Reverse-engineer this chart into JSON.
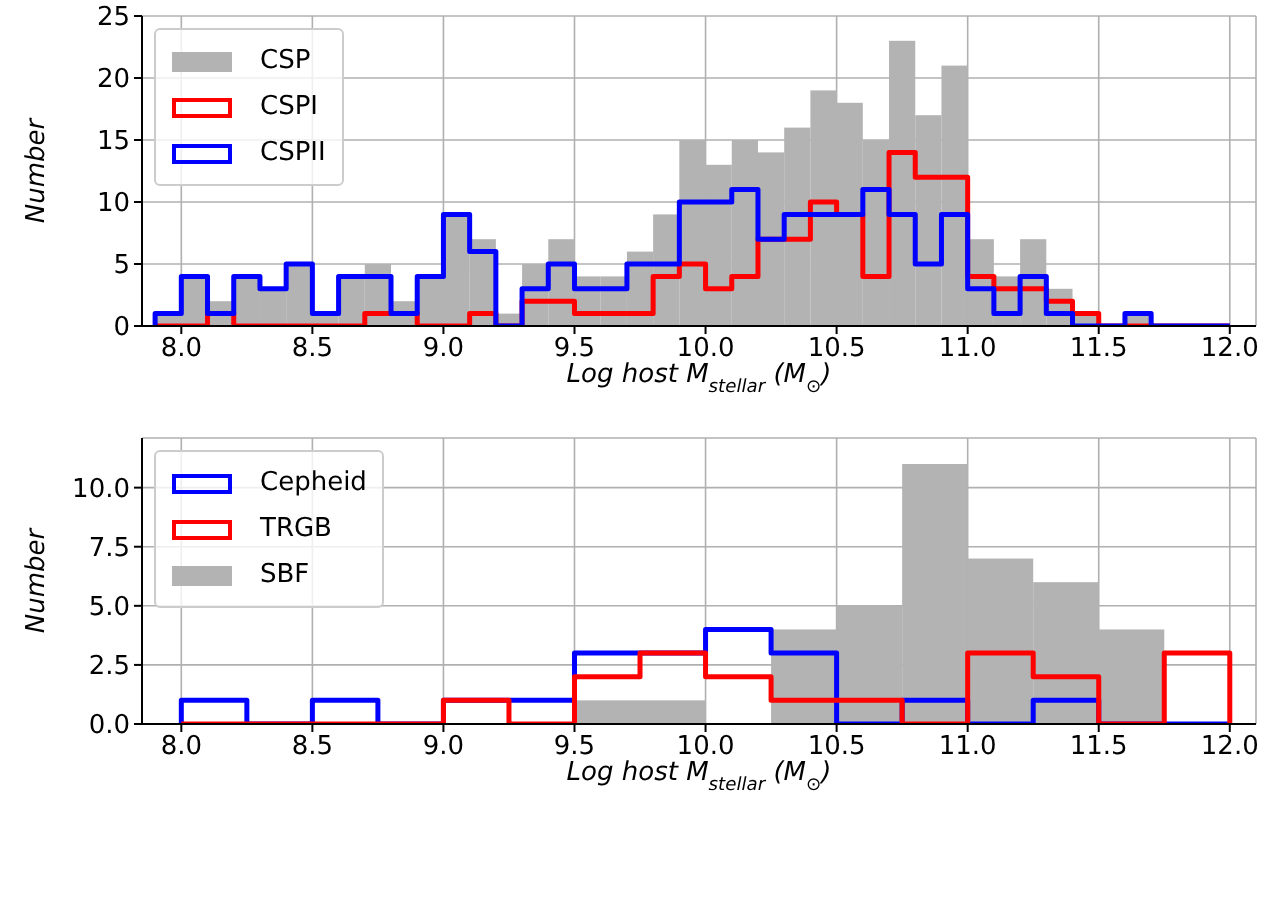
{
  "chart_data": [
    {
      "type": "histogram",
      "xlabel": "Log host M$_{stellar}$ (M$_{⊙}$)",
      "ylabel": "Number",
      "bins": [
        7.9,
        8.0,
        8.1,
        8.2,
        8.3,
        8.4,
        8.5,
        8.6,
        8.7,
        8.8,
        8.9,
        9.0,
        9.1,
        9.2,
        9.3,
        9.4,
        9.5,
        9.6,
        9.7,
        9.8,
        9.9,
        10.0,
        10.1,
        10.2,
        10.3,
        10.4,
        10.5,
        10.6,
        10.7,
        10.8,
        10.9,
        11.0,
        11.1,
        11.2,
        11.3,
        11.4,
        11.5,
        11.6,
        11.7,
        11.8,
        11.9,
        12.0
      ],
      "series": [
        {
          "name": "CSP",
          "color": "#b3b3b3",
          "values": [
            1,
            4,
            2,
            4,
            3,
            5,
            1,
            4,
            5,
            2,
            4,
            9,
            7,
            1,
            5,
            7,
            4,
            4,
            6,
            9,
            15,
            13,
            15,
            14,
            16,
            19,
            18,
            15,
            23,
            17,
            21,
            7,
            4,
            7,
            3,
            1,
            0,
            1,
            0,
            0,
            0
          ]
        },
        {
          "name": "CSPI",
          "color": "#ff0000",
          "line_style": "solid",
          "values": [
            0,
            0,
            1,
            0,
            0,
            0,
            0,
            0,
            1,
            1,
            0,
            0,
            1,
            0,
            2,
            2,
            1,
            1,
            1,
            4,
            5,
            3,
            4,
            7,
            7,
            10,
            9,
            4,
            14,
            12,
            12,
            4,
            3,
            3,
            2,
            1,
            0,
            0,
            0,
            0,
            0
          ]
        },
        {
          "name": "CSPII",
          "color": "#0000ff",
          "line_style": "solid",
          "values": [
            1,
            4,
            1,
            4,
            3,
            5,
            1,
            4,
            4,
            1,
            4,
            9,
            6,
            0,
            3,
            5,
            3,
            3,
            5,
            5,
            10,
            10,
            11,
            7,
            9,
            9,
            9,
            11,
            9,
            5,
            9,
            3,
            1,
            4,
            1,
            0,
            0,
            1,
            0,
            0,
            0
          ]
        }
      ],
      "xlim": [
        7.85,
        12.1
      ],
      "ylim": [
        0,
        25
      ],
      "xticks": [
        {
          "value": 8,
          "label": "8.0"
        },
        {
          "value": 8.5,
          "label": "8.5"
        },
        {
          "value": 9,
          "label": "9.0"
        },
        {
          "value": 9.5,
          "label": "9.5"
        },
        {
          "value": 10,
          "label": "10.0"
        },
        {
          "value": 10.5,
          "label": "10.5"
        },
        {
          "value": 11,
          "label": "11.0"
        },
        {
          "value": 11.5,
          "label": "11.5"
        },
        {
          "value": 12,
          "label": "12.0"
        }
      ],
      "yticks": [
        0,
        5,
        10,
        15,
        20,
        25
      ],
      "grid": true,
      "legend": "top left"
    },
    {
      "type": "histogram",
      "xlabel": "Log host M$_{stellar}$ (M$_{⊙}$)",
      "ylabel": "Number",
      "bins": [
        8.0,
        8.25,
        8.5,
        8.75,
        9.0,
        9.25,
        9.5,
        9.75,
        10.0,
        10.25,
        10.5,
        10.75,
        11.0,
        11.25,
        11.5,
        11.75,
        12.0
      ],
      "series": [
        {
          "name": "Cepheid",
          "color": "#0000ff",
          "line_style": "solid",
          "values": [
            1,
            0,
            1,
            0,
            1,
            1,
            3,
            3,
            4,
            3,
            0,
            1,
            0,
            1,
            0,
            0
          ]
        },
        {
          "name": "TRGB",
          "color": "#ff0000",
          "line_style": "solid",
          "values": [
            0,
            0,
            0,
            0,
            1,
            0,
            2,
            3,
            2,
            1,
            1,
            0,
            3,
            2,
            0,
            3
          ]
        },
        {
          "name": "SBF",
          "color": "#b3b3b3",
          "values": [
            0,
            0,
            0,
            0,
            0,
            0,
            1,
            1,
            0,
            4,
            5,
            11,
            7,
            6,
            4,
            0
          ]
        }
      ],
      "xlim": [
        7.85,
        12.1
      ],
      "ylim": [
        0,
        12.1
      ],
      "xticks": [
        {
          "value": 8,
          "label": "8.0"
        },
        {
          "value": 8.5,
          "label": "8.5"
        },
        {
          "value": 9,
          "label": "9.0"
        },
        {
          "value": 9.5,
          "label": "9.5"
        },
        {
          "value": 10,
          "label": "10.0"
        },
        {
          "value": 10.5,
          "label": "10.5"
        },
        {
          "value": 11,
          "label": "11.0"
        },
        {
          "value": 11.5,
          "label": "11.5"
        },
        {
          "value": 12,
          "label": "12.0"
        }
      ],
      "yticks": [
        {
          "value": 0,
          "label": "0.0"
        },
        {
          "value": 2.5,
          "label": "2.5"
        },
        {
          "value": 5,
          "label": "5.0"
        },
        {
          "value": 7.5,
          "label": "7.5"
        },
        {
          "value": 10,
          "label": "10.0"
        }
      ],
      "grid": true,
      "legend": "top left"
    }
  ]
}
